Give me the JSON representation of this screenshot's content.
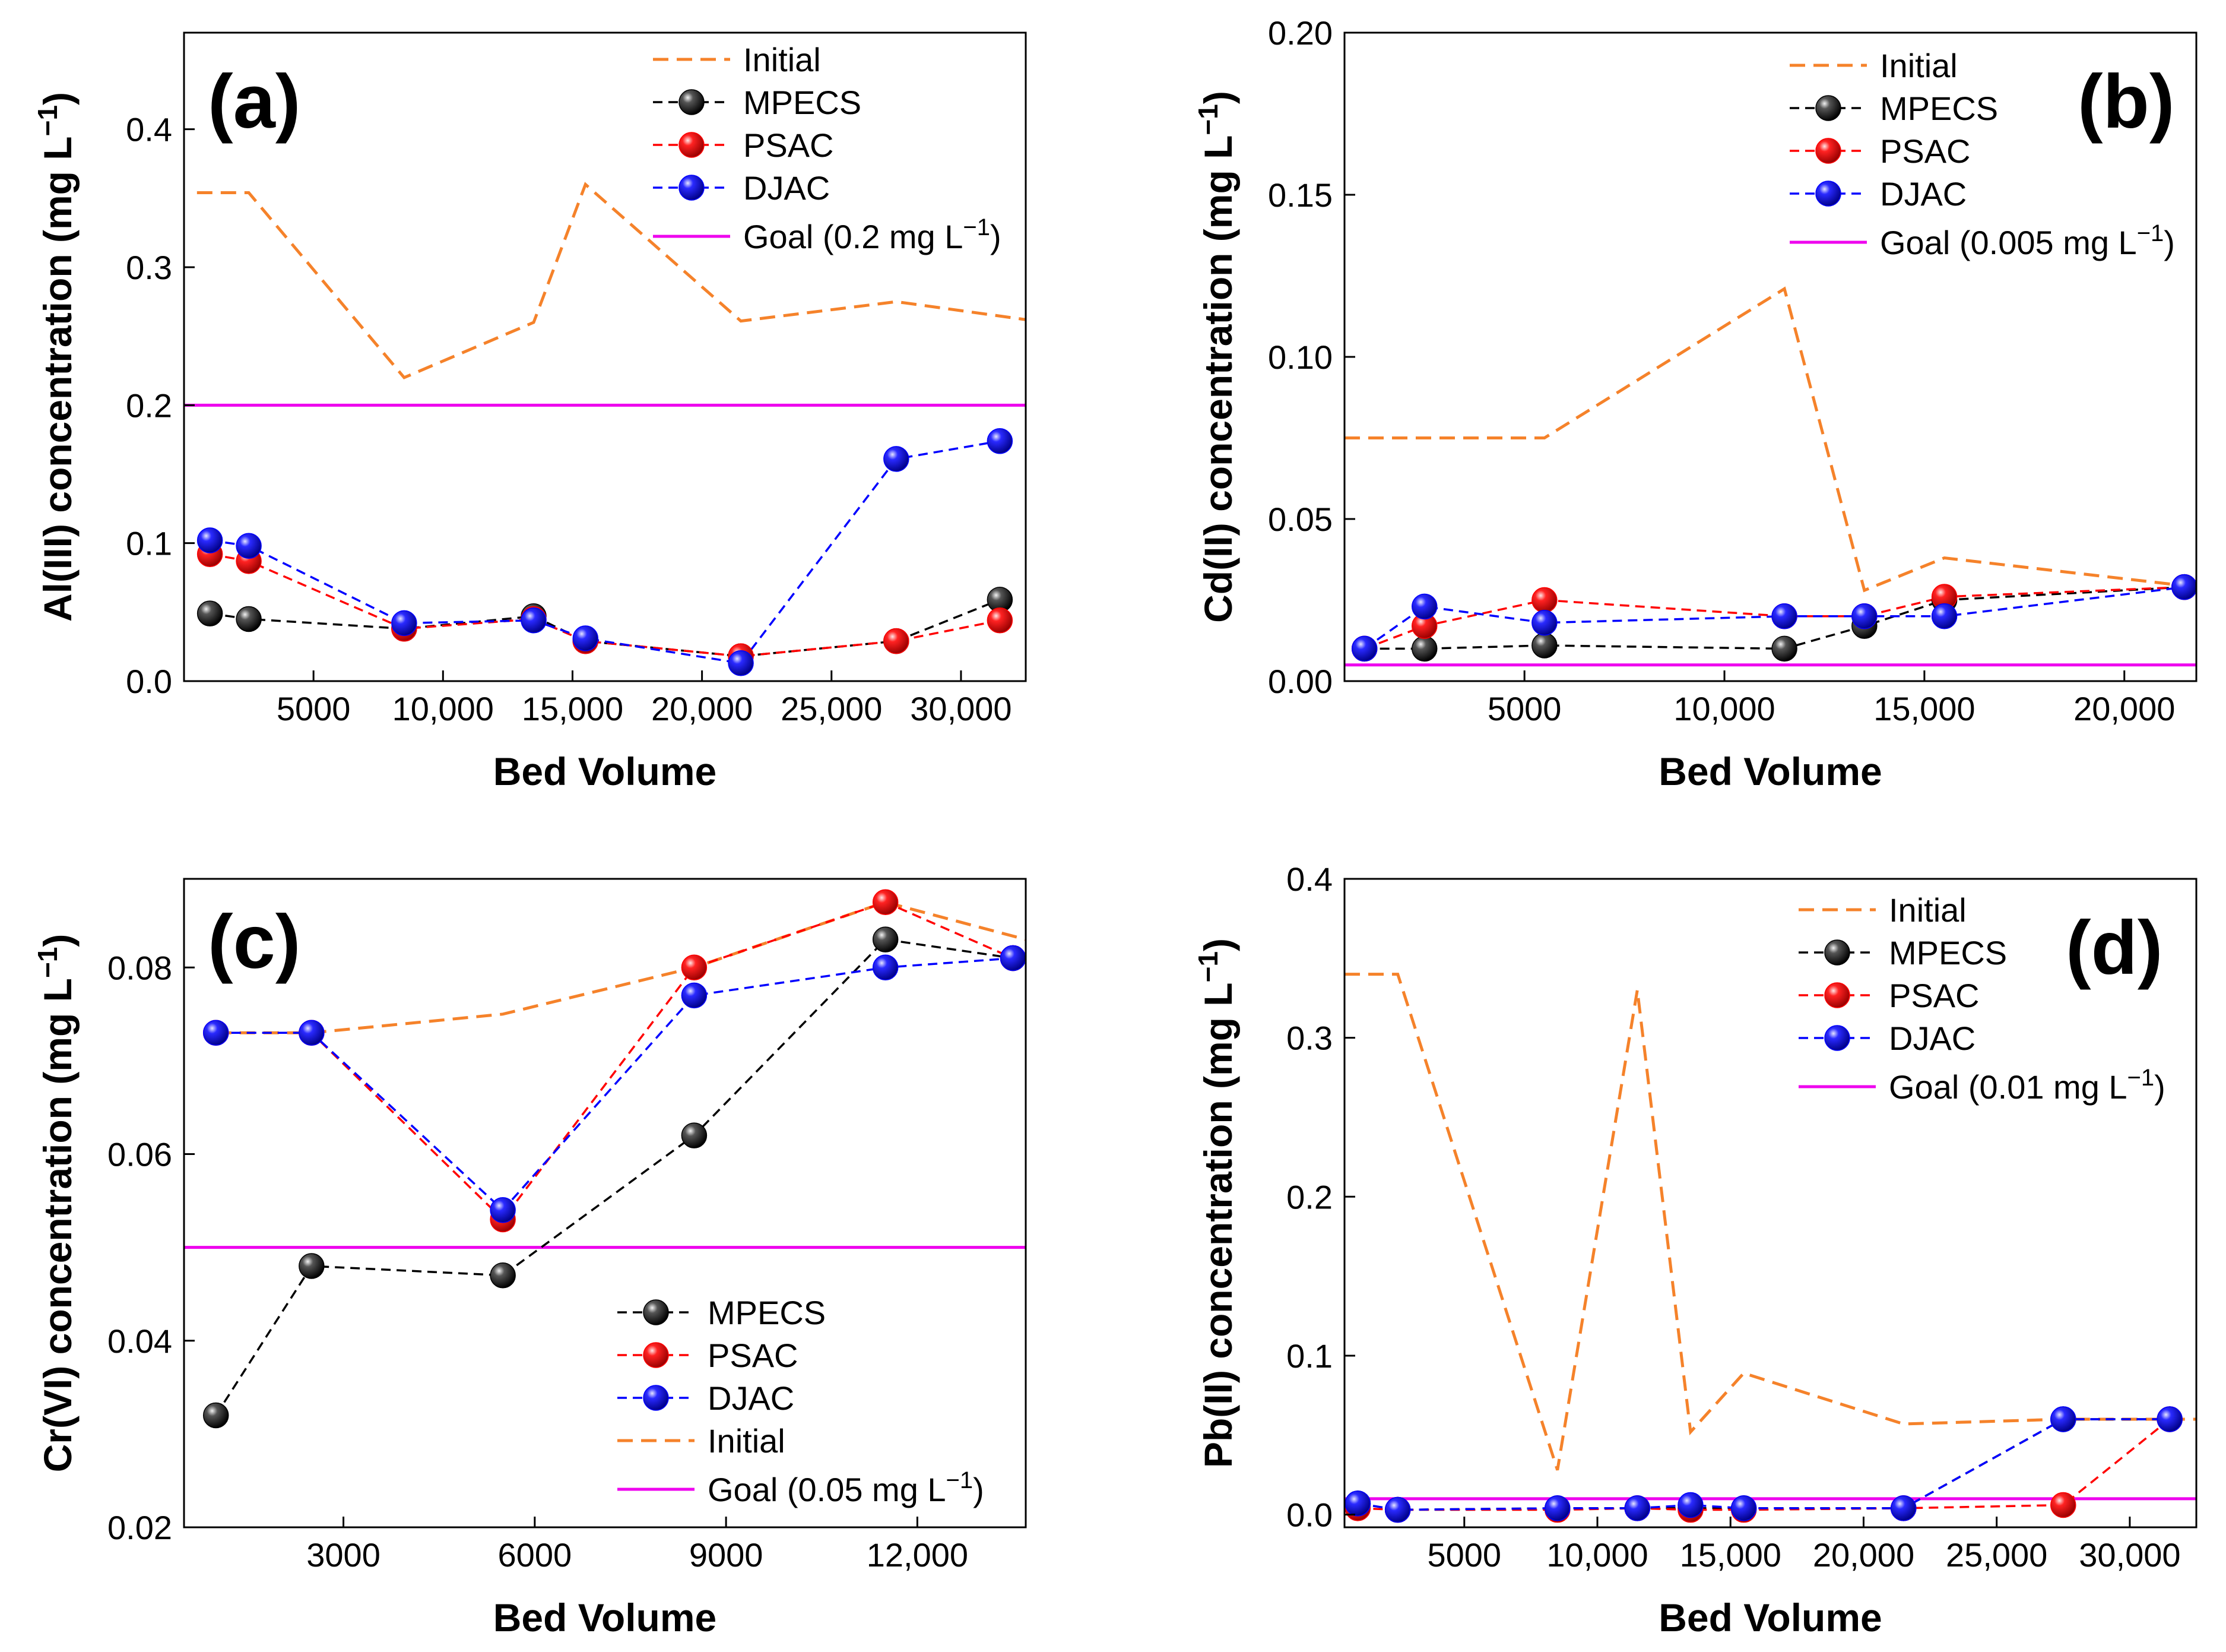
{
  "chart_data": [
    {
      "type": "line",
      "panel": "(a)",
      "xlabel": "Bed Volume",
      "ylabel_main": "Al(III) concentration (mg L",
      "ylabel_sup": "−1",
      "ylabel_tail": ")",
      "xlim": [
        0,
        32500
      ],
      "ylim": [
        0,
        0.47
      ],
      "xticks": [
        5000,
        10000,
        15000,
        20000,
        25000,
        30000
      ],
      "xtick_labels": [
        "5000",
        "10,000",
        "15,000",
        "20,000",
        "25,000",
        "30,000"
      ],
      "yticks": [
        0,
        0.1,
        0.2,
        0.3,
        0.4
      ],
      "ytick_labels": [
        "0.0",
        "0.1",
        "0.2",
        "0.3",
        "0.4"
      ],
      "legend_position": "top-right",
      "legend": [
        {
          "name": "Initial",
          "style": "dash",
          "color": "#f5822a"
        },
        {
          "name": "MPECS",
          "style": "dash-marker",
          "color": "#000000"
        },
        {
          "name": "PSAC",
          "style": "dash-marker",
          "color": "#ff0000"
        },
        {
          "name": "DJAC",
          "style": "dash-marker",
          "color": "#0000ff"
        },
        {
          "name": "Goal (0.2 mg L",
          "sup": "−1",
          "tail": ")",
          "style": "solid",
          "color": "#ee00ee"
        }
      ],
      "goal": {
        "value": 0.2,
        "color": "#ee00ee"
      },
      "initial": {
        "x": [
          500,
          2500,
          8500,
          13500,
          15500,
          21500,
          27500,
          32500
        ],
        "y": [
          0.354,
          0.354,
          0.22,
          0.26,
          0.36,
          0.261,
          0.275,
          0.262
        ],
        "color": "#f5822a"
      },
      "series": [
        {
          "name": "MPECS",
          "color": "#000000",
          "x": [
            1000,
            2500,
            8500,
            13500,
            15500,
            21500,
            27500,
            31500
          ],
          "y": [
            0.049,
            0.045,
            0.038,
            0.047,
            0.029,
            0.018,
            0.029,
            0.059
          ]
        },
        {
          "name": "PSAC",
          "color": "#ff0000",
          "x": [
            1000,
            2500,
            8500,
            13500,
            15500,
            21500,
            27500,
            31500
          ],
          "y": [
            0.092,
            0.087,
            0.038,
            0.045,
            0.029,
            0.018,
            0.029,
            0.044
          ]
        },
        {
          "name": "DJAC",
          "color": "#0000ff",
          "x": [
            1000,
            2500,
            8500,
            13500,
            15500,
            21500,
            27500,
            31500
          ],
          "y": [
            0.102,
            0.098,
            0.042,
            0.044,
            0.031,
            0.013,
            0.161,
            0.174
          ]
        }
      ]
    },
    {
      "type": "line",
      "panel": "(b)",
      "xlabel": "Bed Volume",
      "ylabel_main": "Cd(II) concentration (mg L",
      "ylabel_sup": "−1",
      "ylabel_tail": ")",
      "xlim": [
        500,
        21800
      ],
      "ylim": [
        0,
        0.2
      ],
      "xticks": [
        5000,
        10000,
        15000,
        20000
      ],
      "xtick_labels": [
        "5000",
        "10,000",
        "15,000",
        "20,000"
      ],
      "yticks": [
        0,
        0.05,
        0.1,
        0.15,
        0.2
      ],
      "ytick_labels": [
        "0.00",
        "0.05",
        "0.10",
        "0.15",
        "0.20"
      ],
      "legend_position": "top-right",
      "legend": [
        {
          "name": "Initial",
          "style": "dash",
          "color": "#f5822a"
        },
        {
          "name": "MPECS",
          "style": "dash-marker",
          "color": "#000000"
        },
        {
          "name": "PSAC",
          "style": "dash-marker",
          "color": "#ff0000"
        },
        {
          "name": "DJAC",
          "style": "dash-marker",
          "color": "#0000ff"
        },
        {
          "name": "Goal (0.005 mg L",
          "sup": "−1",
          "tail": ")",
          "style": "solid",
          "color": "#ee00ee"
        }
      ],
      "goal": {
        "value": 0.005,
        "color": "#ee00ee"
      },
      "initial": {
        "x": [
          500,
          5500,
          11500,
          13500,
          15500,
          21800
        ],
        "y": [
          0.075,
          0.075,
          0.121,
          0.028,
          0.038,
          0.029
        ],
        "color": "#f5822a"
      },
      "series": [
        {
          "name": "MPECS",
          "color": "#000000",
          "x": [
            1000,
            2500,
            5500,
            11500,
            13500,
            15500,
            21500
          ],
          "y": [
            0.01,
            0.01,
            0.011,
            0.01,
            0.017,
            0.025,
            0.029
          ]
        },
        {
          "name": "PSAC",
          "color": "#ff0000",
          "x": [
            1000,
            2500,
            5500,
            11500,
            13500,
            15500,
            21500
          ],
          "y": [
            0.01,
            0.017,
            0.025,
            0.02,
            0.02,
            0.026,
            0.029
          ]
        },
        {
          "name": "DJAC",
          "color": "#0000ff",
          "x": [
            1000,
            2500,
            5500,
            11500,
            13500,
            15500,
            21500
          ],
          "y": [
            0.01,
            0.023,
            0.018,
            0.02,
            0.02,
            0.02,
            0.029
          ]
        }
      ]
    },
    {
      "type": "line",
      "panel": "(c)",
      "xlabel": "Bed Volume",
      "ylabel_main": "Cr(VI) concentration (mg L",
      "ylabel_sup": "−1",
      "ylabel_tail": ")",
      "xlim": [
        500,
        13700
      ],
      "ylim": [
        0.02,
        0.0895
      ],
      "xticks": [
        3000,
        6000,
        9000,
        12000
      ],
      "xtick_labels": [
        "3000",
        "6000",
        "9000",
        "12,000"
      ],
      "yticks": [
        0.02,
        0.04,
        0.06,
        0.08
      ],
      "ytick_labels": [
        "0.02",
        "0.04",
        "0.06",
        "0.08"
      ],
      "legend_position": "bottom-right",
      "legend": [
        {
          "name": "MPECS",
          "style": "dash-marker",
          "color": "#000000"
        },
        {
          "name": "PSAC",
          "style": "dash-marker",
          "color": "#ff0000"
        },
        {
          "name": "DJAC",
          "style": "dash-marker",
          "color": "#0000ff"
        },
        {
          "name": "Initial",
          "style": "dash",
          "color": "#f5822a"
        },
        {
          "name": "Goal (0.05 mg L",
          "sup": "−1",
          "tail": ")",
          "style": "solid",
          "color": "#ee00ee"
        }
      ],
      "goal": {
        "value": 0.05,
        "color": "#ee00ee"
      },
      "initial": {
        "x": [
          1000,
          2500,
          5500,
          8500,
          11500,
          13700
        ],
        "y": [
          0.073,
          0.073,
          0.075,
          0.08,
          0.087,
          0.083
        ],
        "color": "#f5822a"
      },
      "series": [
        {
          "name": "MPECS",
          "color": "#000000",
          "x": [
            1000,
            2500,
            5500,
            8500,
            11500,
            13500
          ],
          "y": [
            0.032,
            0.048,
            0.047,
            0.062,
            0.083,
            0.081
          ]
        },
        {
          "name": "PSAC",
          "color": "#ff0000",
          "x": [
            1000,
            2500,
            5500,
            8500,
            11500,
            13500
          ],
          "y": [
            0.073,
            0.073,
            0.053,
            0.08,
            0.087,
            0.081
          ]
        },
        {
          "name": "DJAC",
          "color": "#0000ff",
          "x": [
            1000,
            2500,
            5500,
            8500,
            11500,
            13500
          ],
          "y": [
            0.073,
            0.073,
            0.054,
            0.077,
            0.08,
            0.081
          ]
        }
      ]
    },
    {
      "type": "line",
      "panel": "(d)",
      "xlabel": "Bed Volume",
      "ylabel_main": "Pb(II) concentration (mg L",
      "ylabel_sup": "−1",
      "ylabel_tail": ")",
      "xlim": [
        500,
        32500
      ],
      "ylim": [
        -0.008,
        0.4
      ],
      "xticks": [
        5000,
        10000,
        15000,
        20000,
        25000,
        30000
      ],
      "xtick_labels": [
        "5000",
        "10,000",
        "15,000",
        "20,000",
        "25,000",
        "30,000"
      ],
      "yticks": [
        0,
        0.1,
        0.2,
        0.3,
        0.4
      ],
      "ytick_labels": [
        "0.0",
        "0.1",
        "0.2",
        "0.3",
        "0.4"
      ],
      "legend_position": "top-right",
      "legend": [
        {
          "name": "Initial",
          "style": "dash",
          "color": "#f5822a"
        },
        {
          "name": "MPECS",
          "style": "dash-marker",
          "color": "#000000"
        },
        {
          "name": "PSAC",
          "style": "dash-marker",
          "color": "#ff0000"
        },
        {
          "name": "DJAC",
          "style": "dash-marker",
          "color": "#0000ff"
        },
        {
          "name": "Goal (0.01 mg L",
          "sup": "−1",
          "tail": ")",
          "style": "solid",
          "color": "#ee00ee"
        }
      ],
      "goal": {
        "value": 0.01,
        "color": "#ee00ee"
      },
      "initial": {
        "x": [
          500,
          2500,
          8500,
          11500,
          13500,
          15500,
          21500,
          27500,
          32500
        ],
        "y": [
          0.34,
          0.34,
          0.028,
          0.33,
          0.052,
          0.089,
          0.057,
          0.06,
          0.06
        ],
        "color": "#f5822a"
      },
      "series": [
        {
          "name": "MPECS",
          "color": "#000000",
          "x": [
            1000,
            2500,
            8500,
            11500,
            13500,
            15500,
            21500,
            27500,
            31500
          ],
          "y": [
            0.007,
            0.003,
            0.004,
            0.004,
            0.004,
            0.004,
            0.004,
            0.06,
            0.06
          ]
        },
        {
          "name": "PSAC",
          "color": "#ff0000",
          "x": [
            1000,
            2500,
            8500,
            11500,
            13500,
            15500,
            21500,
            27500,
            31500
          ],
          "y": [
            0.004,
            0.003,
            0.003,
            0.004,
            0.003,
            0.003,
            0.004,
            0.006,
            0.06
          ]
        },
        {
          "name": "DJAC",
          "color": "#0000ff",
          "x": [
            1000,
            2500,
            8500,
            11500,
            13500,
            15500,
            21500,
            27500,
            31500
          ],
          "y": [
            0.007,
            0.003,
            0.004,
            0.004,
            0.006,
            0.004,
            0.004,
            0.06,
            0.06
          ]
        }
      ]
    }
  ]
}
